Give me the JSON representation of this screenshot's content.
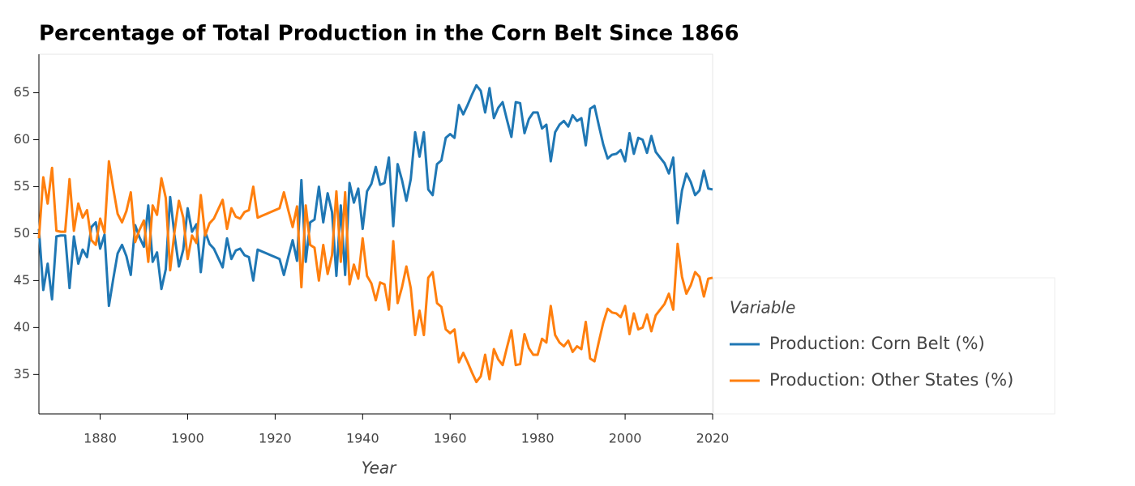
{
  "chart_data": {
    "type": "line",
    "title": "Percentage of Total Production in the Corn Belt Since 1866",
    "x_label": "Year",
    "legend_title": "Variable",
    "legend": "right",
    "x": [
      1866,
      1867,
      1868,
      1869,
      1870,
      1871,
      1872,
      1873,
      1874,
      1875,
      1876,
      1877,
      1878,
      1879,
      1880,
      1881,
      1882,
      1883,
      1884,
      1885,
      1886,
      1887,
      1888,
      1889,
      1890,
      1891,
      1892,
      1893,
      1894,
      1895,
      1896,
      1897,
      1898,
      1899,
      1900,
      1901,
      1902,
      1903,
      1904,
      1905,
      1906,
      1907,
      1908,
      1909,
      1910,
      1911,
      1912,
      1913,
      1914,
      1915,
      1916,
      1917,
      1918,
      1919,
      1920,
      1921,
      1922,
      1923,
      1924,
      1925,
      1926,
      1927,
      1928,
      1929,
      1930,
      1931,
      1932,
      1933,
      1934,
      1935,
      1936,
      1937,
      1938,
      1939,
      1940,
      1941,
      1942,
      1943,
      1944,
      1945,
      1946,
      1947,
      1948,
      1949,
      1950,
      1951,
      1952,
      1953,
      1954,
      1955,
      1956,
      1957,
      1958,
      1959,
      1960,
      1961,
      1962,
      1963,
      1964,
      1965,
      1966,
      1967,
      1968,
      1969,
      1970,
      1971,
      1972,
      1973,
      1974,
      1975,
      1976,
      1977,
      1978,
      1979,
      1980,
      1981,
      1982,
      1983,
      1984,
      1985,
      1986,
      1987,
      1988,
      1989,
      1990,
      1991,
      1992,
      1993,
      1994,
      1995,
      1996,
      1997,
      1998,
      1999,
      2000,
      2001,
      2002,
      2003,
      2004,
      2005,
      2006,
      2007,
      2008,
      2009,
      2010,
      2011,
      2012,
      2013,
      2014,
      2015,
      2016,
      2017,
      2018,
      2019,
      2020
    ],
    "series": [
      {
        "name": "Production: Corn Belt (%)",
        "color": "#1f77b4",
        "values": [
          50.5,
          44,
          46.8,
          43,
          49.7,
          49.8,
          49.8,
          44.2,
          49.7,
          46.8,
          48.3,
          47.5,
          50.7,
          51.2,
          48.4,
          49.9,
          42.3,
          45.2,
          47.9,
          48.8,
          47.6,
          45.6,
          50.9,
          49.6,
          48.6,
          53,
          47,
          48,
          44.1,
          46.2,
          53.9,
          49.8,
          46.5,
          48.3,
          52.7,
          50.2,
          51,
          45.9,
          50.2,
          48.9,
          48.4,
          47.4,
          46.4,
          49.5,
          47.3,
          48.2,
          48.4,
          47.7,
          47.5,
          45,
          48.3,
          48.1,
          47.9,
          47.7,
          47.5,
          47.3,
          45.6,
          47.5,
          49.3,
          47.1,
          55.7,
          47,
          51.2,
          51.5,
          55,
          51.2,
          54.3,
          52.3,
          45.5,
          53,
          45.6,
          55.4,
          53.3,
          54.8,
          50.5,
          54.5,
          55.3,
          57.1,
          55.2,
          55.4,
          58.1,
          50.8,
          57.4,
          55.7,
          53.5,
          55.8,
          60.8,
          58.2,
          60.8,
          54.7,
          54.1,
          57.4,
          57.8,
          60.2,
          60.6,
          60.2,
          63.7,
          62.7,
          63.7,
          64.8,
          65.8,
          65.2,
          62.9,
          65.5,
          62.3,
          63.4,
          64,
          62.1,
          60.3,
          64,
          63.9,
          60.7,
          62.2,
          62.9,
          62.9,
          61.2,
          61.6,
          57.7,
          60.8,
          61.6,
          62,
          61.4,
          62.6,
          62,
          62.3,
          59.4,
          63.3,
          63.6,
          61.5,
          59.5,
          58,
          58.4,
          58.5,
          58.9,
          57.7,
          60.7,
          58.5,
          60.2,
          60,
          58.6,
          60.4,
          58.7,
          58.1,
          57.5,
          56.4,
          58.1,
          51.1,
          54.6,
          56.4,
          55.5,
          54.1,
          54.6,
          56.7,
          54.8,
          54.7
        ]
      },
      {
        "name": "Production: Other States (%)",
        "color": "#ff7f0e",
        "values": [
          49.5,
          56,
          53.2,
          57,
          50.3,
          50.2,
          50.2,
          55.8,
          50.3,
          53.2,
          51.7,
          52.5,
          49.3,
          48.8,
          51.6,
          50.1,
          57.7,
          54.8,
          52.1,
          51.2,
          52.4,
          54.4,
          49.1,
          50.4,
          51.4,
          47,
          53,
          52,
          55.9,
          53.8,
          46.1,
          50.2,
          53.5,
          51.7,
          47.3,
          49.8,
          49,
          54.1,
          49.8,
          51.1,
          51.6,
          52.6,
          53.6,
          50.5,
          52.7,
          51.8,
          51.6,
          52.3,
          52.5,
          55,
          51.7,
          51.9,
          52.1,
          52.3,
          52.5,
          52.7,
          54.4,
          52.5,
          50.7,
          52.9,
          44.3,
          53,
          48.8,
          48.5,
          45,
          48.8,
          45.7,
          47.7,
          54.5,
          47,
          54.4,
          44.6,
          46.7,
          45.2,
          49.5,
          45.5,
          44.7,
          42.9,
          44.8,
          44.6,
          41.9,
          49.2,
          42.6,
          44.3,
          46.5,
          44.2,
          39.2,
          41.8,
          39.2,
          45.3,
          45.9,
          42.6,
          42.2,
          39.8,
          39.4,
          39.8,
          36.3,
          37.3,
          36.3,
          35.2,
          34.2,
          34.8,
          37.1,
          34.5,
          37.7,
          36.6,
          36,
          37.9,
          39.7,
          36,
          36.1,
          39.3,
          37.8,
          37.1,
          37.1,
          38.8,
          38.4,
          42.3,
          39.2,
          38.4,
          38,
          38.6,
          37.4,
          38,
          37.7,
          40.6,
          36.7,
          36.4,
          38.5,
          40.5,
          42,
          41.6,
          41.5,
          41.1,
          42.3,
          39.3,
          41.5,
          39.8,
          40,
          41.4,
          39.6,
          41.3,
          41.9,
          42.5,
          43.6,
          41.9,
          48.9,
          45.4,
          43.6,
          44.5,
          45.9,
          45.4,
          43.3,
          45.2,
          45.3
        ]
      }
    ],
    "xlim": [
      1866,
      2020
    ],
    "xticks": [
      1880,
      1900,
      1920,
      1940,
      1960,
      1980,
      2000,
      2020
    ],
    "ylim": [
      30.8,
      69.1
    ],
    "yticks": [
      35,
      40,
      45,
      50,
      55,
      60,
      65
    ],
    "grid": false
  }
}
